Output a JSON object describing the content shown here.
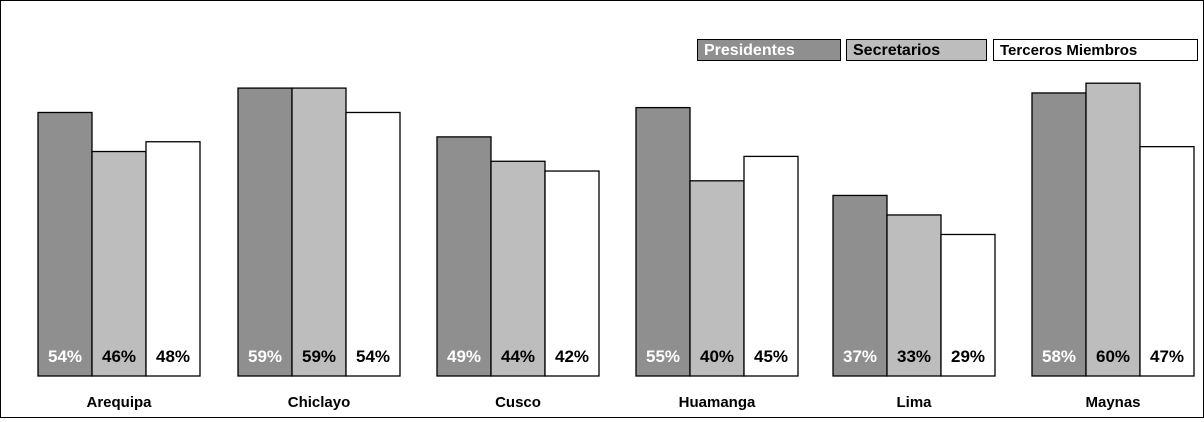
{
  "chart_data": {
    "type": "bar",
    "categories": [
      "Arequipa",
      "Chiclayo",
      "Cusco",
      "Huamanga",
      "Lima",
      "Maynas"
    ],
    "series": [
      {
        "name": "Presidentes",
        "values": [
          54,
          59,
          49,
          55,
          37,
          58
        ],
        "labels": [
          "54%",
          "59%",
          "49%",
          "55%",
          "37%",
          "58%"
        ],
        "color": "#8f8f8f",
        "label_color": "#ffffff"
      },
      {
        "name": "Secretarios",
        "values": [
          46,
          59,
          44,
          40,
          33,
          60
        ],
        "labels": [
          "46%",
          "59%",
          "44%",
          "40%",
          "33%",
          "60%"
        ],
        "color": "#bdbdbd",
        "label_color": "#000000"
      },
      {
        "name": "Terceros Miembros",
        "values": [
          48,
          54,
          42,
          45,
          29,
          47
        ],
        "labels": [
          "48%",
          "54%",
          "42%",
          "45%",
          "29%",
          "47%"
        ],
        "color": "#ffffff",
        "label_color": "#000000"
      }
    ],
    "legend_position": "top-right",
    "grid": false
  }
}
